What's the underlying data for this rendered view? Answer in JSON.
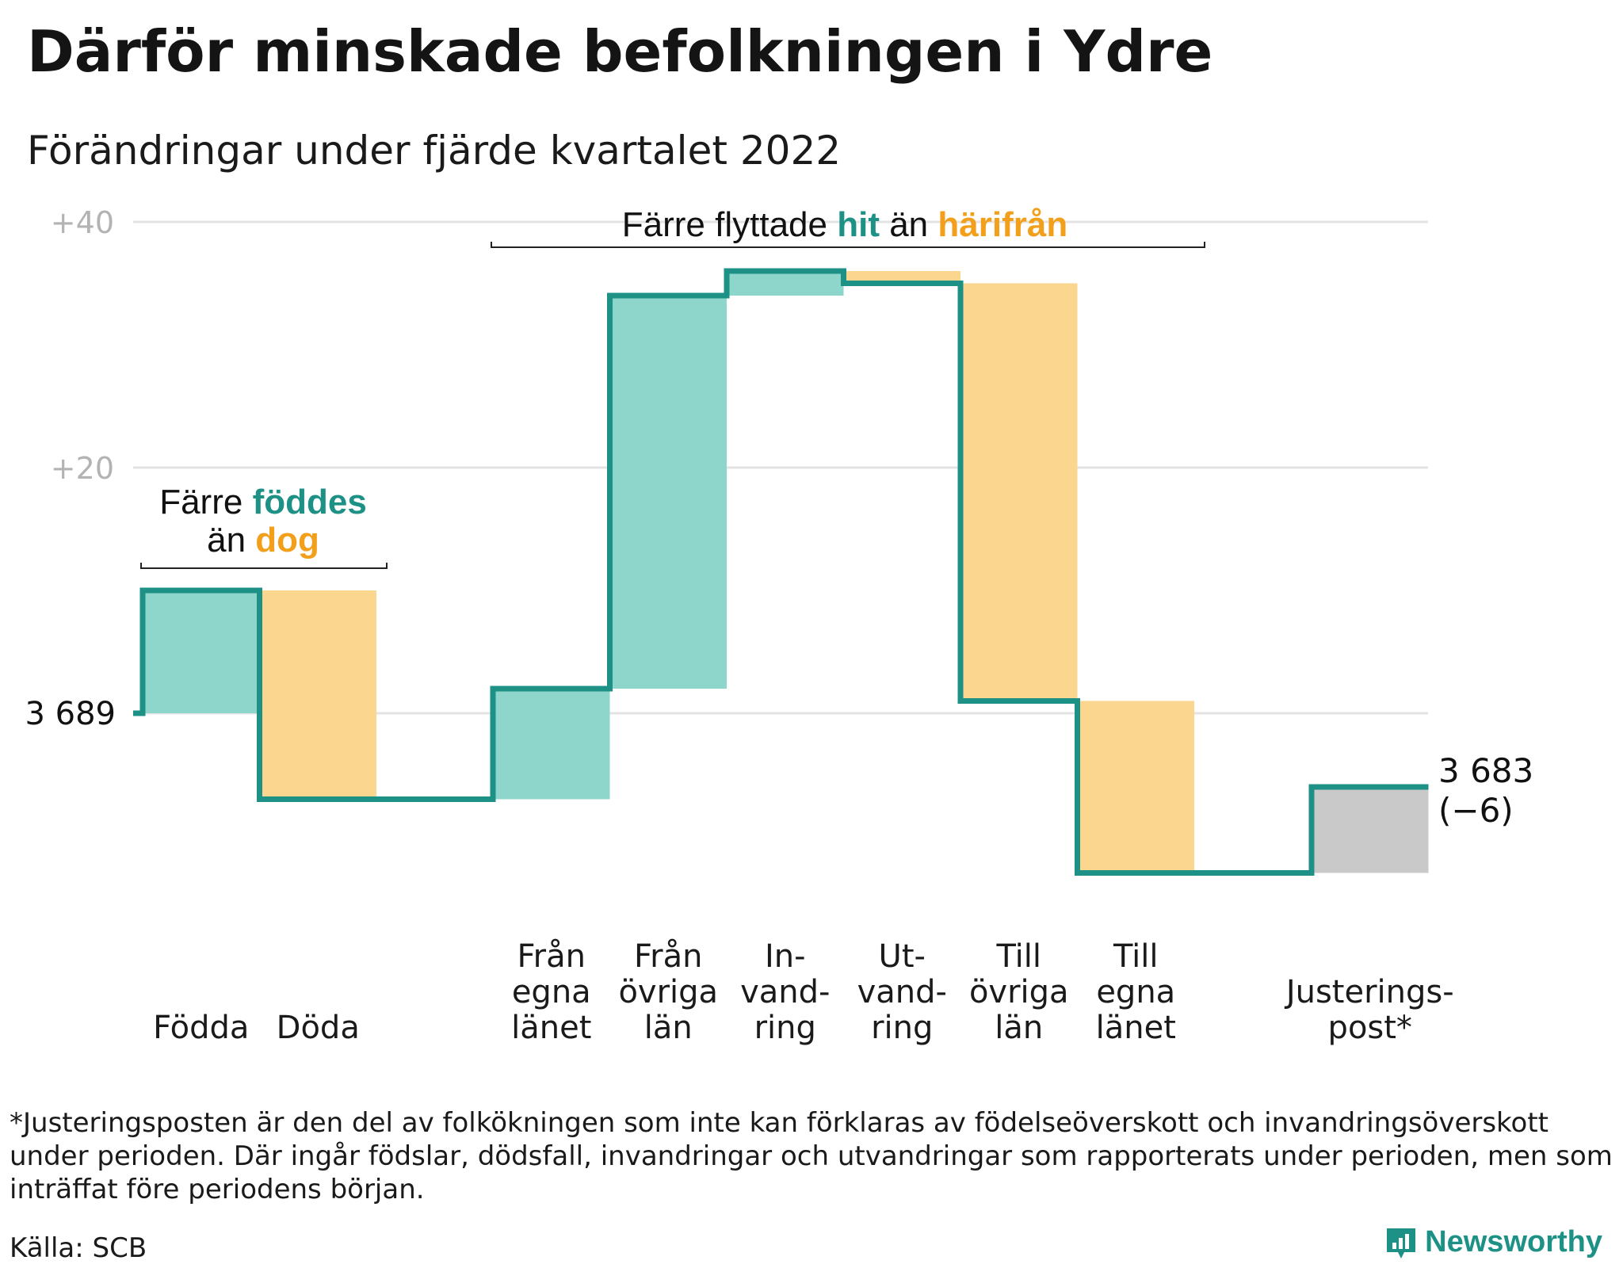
{
  "header": {
    "title": "Därför minskade befolkningen i Ydre",
    "subtitle": "Förändringar under fjärde kvartalet 2022"
  },
  "footer": {
    "footnote": "*Justeringsposten är den del av folkökningen som inte kan förklaras av födelseöverskott och invandringsöverskott under perioden. Där ingår födslar, dödsfall, invandringar och utvandringar som rapporterats under perioden, men som inträffat före periodens början.",
    "source": "Källa: SCB",
    "brand": "Newsworthy"
  },
  "colors": {
    "positive": "#8ed5cc",
    "negative": "#fad68f",
    "adjustment": "#c9c9c9",
    "line": "#1d9185",
    "accent_teal": "#1d9185",
    "accent_orange": "#f29f1c",
    "grid": "#e3e3e3",
    "tick_text": "#b3b3b3"
  },
  "chart_data": {
    "type": "waterfall",
    "start_value": 3689,
    "start_label": "3 689",
    "end_value": 3683,
    "end_label": "3 683",
    "end_change_label": "(−6)",
    "y_ticks": [
      {
        "value": 20,
        "label": "+20"
      },
      {
        "value": 40,
        "label": "+40"
      }
    ],
    "y_range_relative": [
      -14,
      40
    ],
    "grid": true,
    "steps": [
      {
        "label": [
          "Födda"
        ],
        "change": 10,
        "kind": "positive"
      },
      {
        "label": [
          "Döda"
        ],
        "change": -17,
        "kind": "negative"
      },
      {
        "label": [
          "Från",
          "egna",
          "länet"
        ],
        "change": 9,
        "kind": "positive"
      },
      {
        "label": [
          "Från",
          "övriga",
          "län"
        ],
        "change": 32,
        "kind": "positive"
      },
      {
        "label": [
          "In-",
          "vand-",
          "ring"
        ],
        "change": 2,
        "kind": "positive"
      },
      {
        "label": [
          "Ut-",
          "vand-",
          "ring"
        ],
        "change": -1,
        "kind": "negative"
      },
      {
        "label": [
          "Till",
          "övriga",
          "län"
        ],
        "change": -34,
        "kind": "negative"
      },
      {
        "label": [
          "Till",
          "egna",
          "länet"
        ],
        "change": -14,
        "kind": "negative"
      },
      {
        "label": [
          "Justerings-",
          "post*"
        ],
        "change": 7,
        "kind": "adjustment"
      }
    ],
    "annotations": [
      {
        "lines": [
          [
            {
              "text": "Färre ",
              "color": "dark"
            },
            {
              "text": "föddes",
              "color": "teal"
            }
          ],
          [
            {
              "text": "än ",
              "color": "dark"
            },
            {
              "text": "dog",
              "color": "orange"
            }
          ]
        ]
      },
      {
        "lines": [
          [
            {
              "text": "Färre flyttade ",
              "color": "dark"
            },
            {
              "text": "hit",
              "color": "teal"
            },
            {
              "text": " än ",
              "color": "dark"
            },
            {
              "text": "härifrån",
              "color": "orange"
            }
          ]
        ]
      }
    ]
  }
}
